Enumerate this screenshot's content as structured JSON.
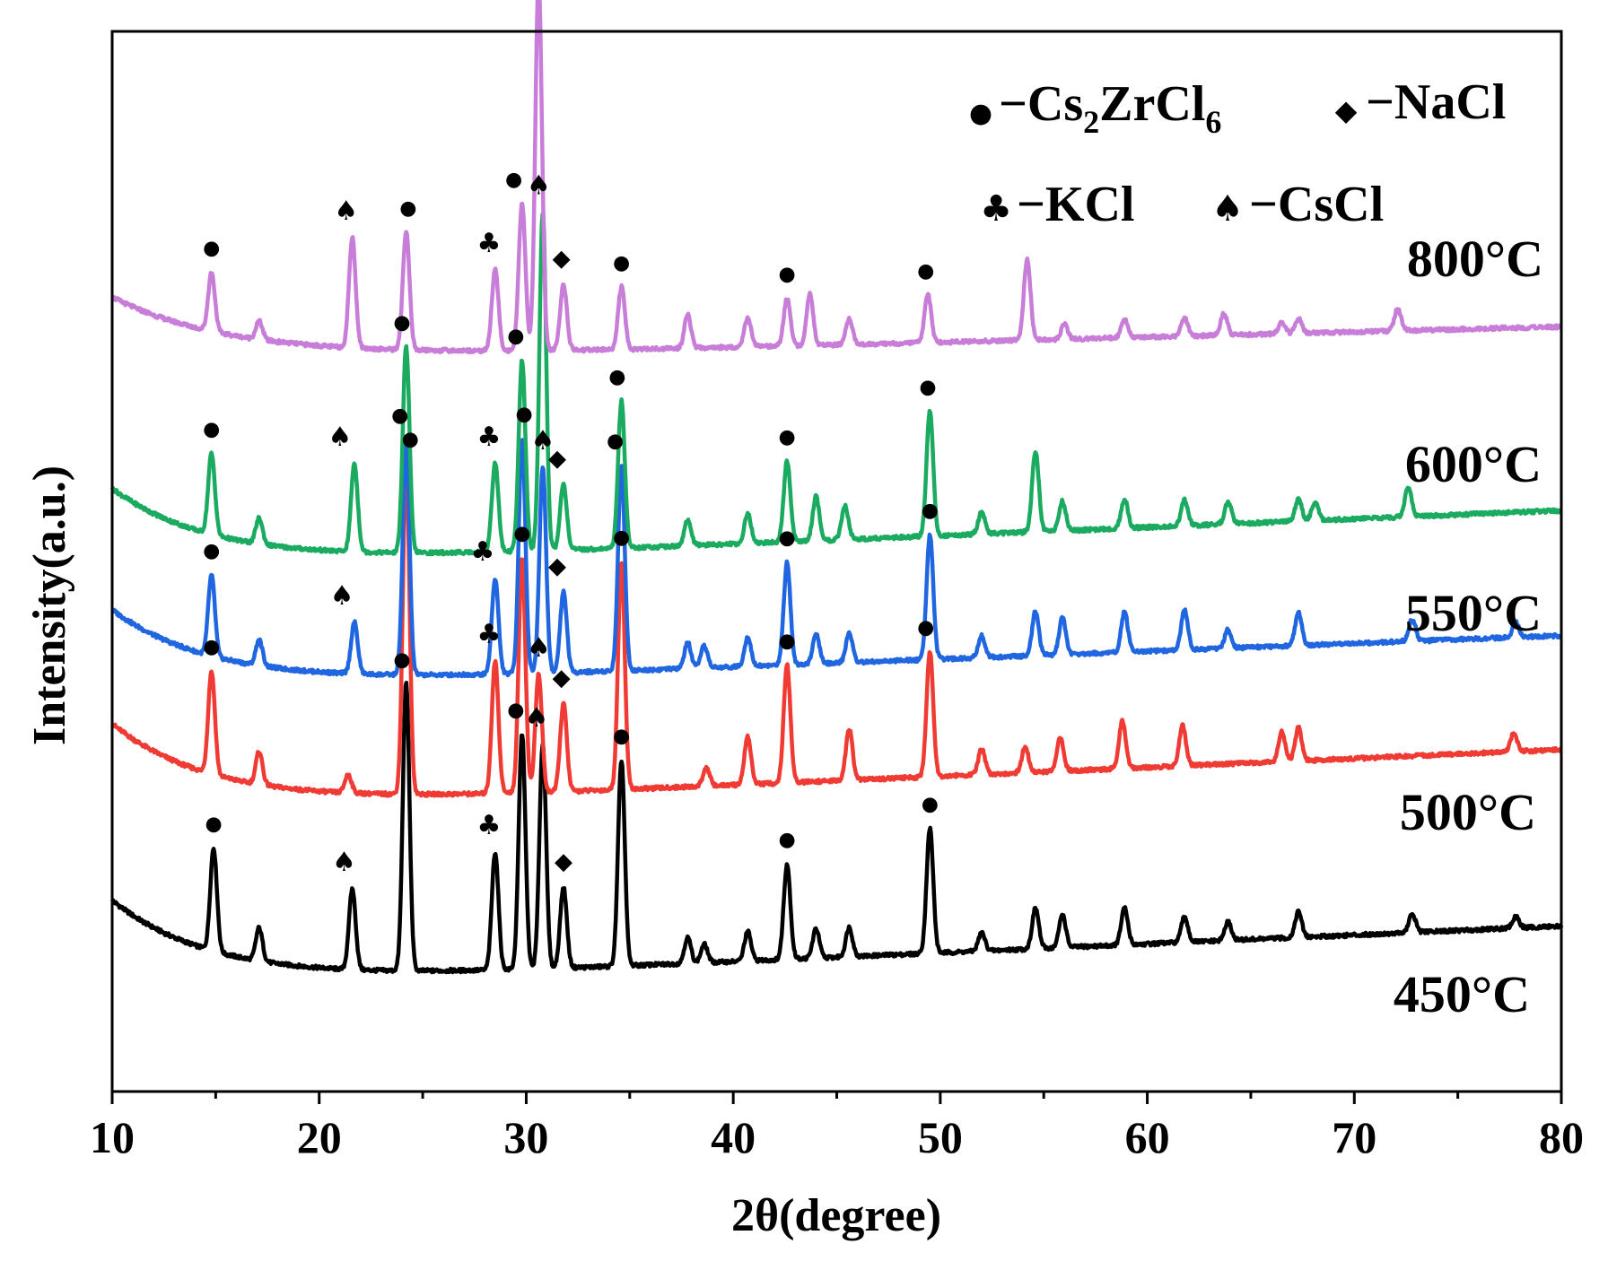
{
  "chart_data": {
    "type": "line",
    "title": "",
    "xlabel": "2θ(degree)",
    "ylabel": "Intensity(a.u.)",
    "xlim": [
      10,
      80
    ],
    "x_ticks": [
      10,
      20,
      30,
      40,
      50,
      60,
      70,
      80
    ],
    "x_tick_labels": [
      "10",
      "20",
      "30",
      "40",
      "50",
      "60",
      "70",
      "80"
    ],
    "y_ticks_shown": false,
    "legend": {
      "placement": "top-right",
      "entries": [
        {
          "phase": "Cs2ZrCl6",
          "symbol": "dot",
          "prefix": "−Cs",
          "sub1": "2",
          "mid": "ZrCl",
          "sub2": "6"
        },
        {
          "phase": "NaCl",
          "symbol": "diamond",
          "text": "−NaCl"
        },
        {
          "phase": "KCl",
          "symbol": "club",
          "text": "−KCl"
        },
        {
          "phase": "CsCl",
          "symbol": "spade",
          "text": "−CsCl"
        }
      ]
    },
    "symbols": {
      "dot": "●",
      "diamond": "◆",
      "club": "♣",
      "spade": "♠"
    },
    "series": [
      {
        "name": "450°C",
        "color": "#000000",
        "baseline": {
          "start": 260,
          "decay": 120,
          "tau": 5,
          "end": 225
        },
        "peaks": [
          [
            14.9,
            140
          ],
          [
            17.1,
            45
          ],
          [
            21.6,
            110
          ],
          [
            24.2,
            390
          ],
          [
            28.5,
            160
          ],
          [
            29.8,
            320
          ],
          [
            30.8,
            305
          ],
          [
            31.8,
            110
          ],
          [
            34.6,
            280
          ],
          [
            37.8,
            35
          ],
          [
            38.6,
            25
          ],
          [
            40.7,
            40
          ],
          [
            42.6,
            130
          ],
          [
            44.0,
            40
          ],
          [
            45.6,
            40
          ],
          [
            49.5,
            170
          ],
          [
            52.0,
            25
          ],
          [
            54.6,
            55
          ],
          [
            55.9,
            45
          ],
          [
            58.9,
            50
          ],
          [
            61.8,
            35
          ],
          [
            63.9,
            25
          ],
          [
            67.3,
            35
          ],
          [
            72.8,
            25
          ],
          [
            77.8,
            15
          ]
        ],
        "markers": [
          [
            14.9,
            "dot"
          ],
          [
            21.2,
            "spade"
          ],
          [
            24.0,
            "dot"
          ],
          [
            28.2,
            "club"
          ],
          [
            29.5,
            "dot"
          ],
          [
            30.5,
            "spade"
          ],
          [
            31.8,
            "diamond"
          ],
          [
            34.6,
            "dot"
          ],
          [
            42.6,
            "dot"
          ],
          [
            49.5,
            "dot"
          ]
        ]
      },
      {
        "name": "500°C",
        "color": "#ef3b33",
        "baseline": {
          "start": 500,
          "decay": 120,
          "tau": 5,
          "end": 465
        },
        "peaks": [
          [
            14.8,
            140
          ],
          [
            17.1,
            45
          ],
          [
            21.4,
            25
          ],
          [
            24.2,
            450
          ],
          [
            28.5,
            180
          ],
          [
            29.8,
            320
          ],
          [
            30.6,
            160
          ],
          [
            31.8,
            120
          ],
          [
            34.6,
            310
          ],
          [
            38.7,
            25
          ],
          [
            40.7,
            65
          ],
          [
            42.6,
            160
          ],
          [
            45.6,
            70
          ],
          [
            49.5,
            170
          ],
          [
            52.0,
            35
          ],
          [
            54.1,
            35
          ],
          [
            55.8,
            45
          ],
          [
            58.8,
            65
          ],
          [
            61.7,
            55
          ],
          [
            66.5,
            40
          ],
          [
            67.3,
            45
          ],
          [
            77.7,
            25
          ]
        ],
        "markers": [
          [
            14.8,
            "dot"
          ],
          [
            24.4,
            "dot"
          ],
          [
            28.2,
            "club"
          ],
          [
            29.8,
            "dot"
          ],
          [
            30.6,
            "spade"
          ],
          [
            31.7,
            "diamond"
          ],
          [
            34.6,
            "dot"
          ],
          [
            42.6,
            "dot"
          ],
          [
            49.3,
            "dot"
          ]
        ]
      },
      {
        "name": "550°C",
        "color": "#1f66e0",
        "baseline": {
          "start": 655,
          "decay": 110,
          "tau": 5,
          "end": 620
        },
        "peaks": [
          [
            14.8,
            110
          ],
          [
            17.1,
            35
          ],
          [
            21.7,
            70
          ],
          [
            24.2,
            320
          ],
          [
            28.5,
            130
          ],
          [
            29.8,
            320
          ],
          [
            30.8,
            280
          ],
          [
            31.8,
            110
          ],
          [
            34.6,
            280
          ],
          [
            37.8,
            35
          ],
          [
            38.6,
            30
          ],
          [
            40.7,
            40
          ],
          [
            42.6,
            140
          ],
          [
            44.0,
            40
          ],
          [
            45.6,
            40
          ],
          [
            49.5,
            170
          ],
          [
            52.0,
            30
          ],
          [
            54.6,
            60
          ],
          [
            55.9,
            50
          ],
          [
            58.9,
            55
          ],
          [
            61.8,
            55
          ],
          [
            63.9,
            25
          ],
          [
            67.3,
            45
          ],
          [
            72.8,
            30
          ],
          [
            77.8,
            20
          ]
        ],
        "markers": [
          [
            14.8,
            "dot"
          ],
          [
            21.1,
            "spade"
          ],
          [
            23.9,
            "dot"
          ],
          [
            27.9,
            "club"
          ],
          [
            29.9,
            "dot"
          ],
          [
            30.8,
            "spade"
          ],
          [
            31.5,
            "diamond"
          ],
          [
            34.3,
            "dot"
          ],
          [
            42.6,
            "dot"
          ],
          [
            49.5,
            "dot"
          ]
        ]
      },
      {
        "name": "600°C",
        "color": "#1aaa60",
        "baseline": {
          "start": 820,
          "decay": 110,
          "tau": 5,
          "end": 790
        },
        "peaks": [
          [
            14.8,
            110
          ],
          [
            17.1,
            35
          ],
          [
            21.7,
            120
          ],
          [
            24.2,
            280
          ],
          [
            28.5,
            120
          ],
          [
            29.8,
            260
          ],
          [
            30.8,
            460
          ],
          [
            31.8,
            90
          ],
          [
            34.6,
            200
          ],
          [
            37.8,
            35
          ],
          [
            40.7,
            40
          ],
          [
            42.6,
            110
          ],
          [
            44.0,
            60
          ],
          [
            45.4,
            45
          ],
          [
            49.5,
            170
          ],
          [
            52.0,
            30
          ],
          [
            54.6,
            110
          ],
          [
            55.9,
            40
          ],
          [
            58.9,
            40
          ],
          [
            61.8,
            35
          ],
          [
            63.9,
            30
          ],
          [
            67.3,
            30
          ],
          [
            68.1,
            25
          ],
          [
            72.6,
            40
          ]
        ],
        "markers": [
          [
            14.8,
            "dot"
          ],
          [
            21.0,
            "spade"
          ],
          [
            24.0,
            "dot"
          ],
          [
            28.2,
            "club"
          ],
          [
            29.5,
            "dot"
          ],
          [
            30.6,
            "spade"
          ],
          [
            31.5,
            "diamond"
          ],
          [
            34.4,
            "dot"
          ],
          [
            42.6,
            "dot"
          ],
          [
            49.4,
            "dot"
          ]
        ]
      },
      {
        "name": "800°C",
        "color": "#c87ed8",
        "baseline": {
          "start": 1080,
          "decay": 90,
          "tau": 6,
          "end": 1040
        },
        "peaks": [
          [
            14.8,
            80
          ],
          [
            17.1,
            25
          ],
          [
            21.6,
            150
          ],
          [
            24.2,
            160
          ],
          [
            28.5,
            110
          ],
          [
            29.8,
            200
          ],
          [
            30.6,
            505
          ],
          [
            31.8,
            90
          ],
          [
            34.6,
            85
          ],
          [
            37.8,
            45
          ],
          [
            40.7,
            40
          ],
          [
            42.6,
            65
          ],
          [
            43.7,
            70
          ],
          [
            45.6,
            35
          ],
          [
            49.4,
            65
          ],
          [
            54.2,
            110
          ],
          [
            56.0,
            20
          ],
          [
            58.9,
            25
          ],
          [
            61.8,
            25
          ],
          [
            63.7,
            30
          ],
          [
            66.5,
            15
          ],
          [
            67.3,
            20
          ],
          [
            72.1,
            30
          ]
        ],
        "markers": [
          [
            14.8,
            "dot"
          ],
          [
            21.3,
            "spade"
          ],
          [
            24.3,
            "dot"
          ],
          [
            28.2,
            "club"
          ],
          [
            29.4,
            "dot"
          ],
          [
            30.6,
            "spade"
          ],
          [
            31.7,
            "diamond"
          ],
          [
            34.6,
            "dot"
          ],
          [
            42.6,
            "dot"
          ],
          [
            49.3,
            "dot"
          ]
        ]
      }
    ]
  }
}
